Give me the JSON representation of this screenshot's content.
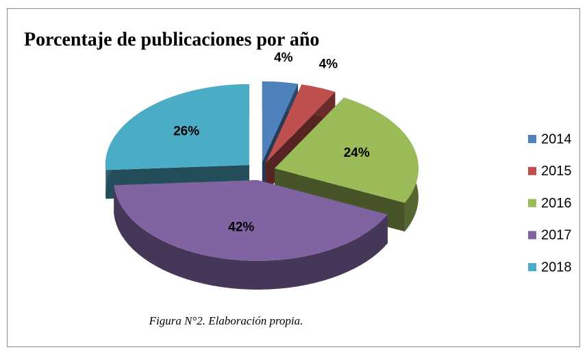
{
  "chart_data": {
    "type": "pie",
    "title": "Porcentaje de publicaciones por año",
    "categories": [
      "2014",
      "2015",
      "2016",
      "2017",
      "2018"
    ],
    "values": [
      4,
      4,
      24,
      42,
      26
    ],
    "value_labels": [
      "4%",
      "4%",
      "24%",
      "42%",
      "26%"
    ],
    "colors": [
      "#4f81bd",
      "#c0504d",
      "#9bbb59",
      "#8064a2",
      "#4bacc6"
    ],
    "legend": "right",
    "annotation": "Figura N°2. Elaboración propia."
  }
}
